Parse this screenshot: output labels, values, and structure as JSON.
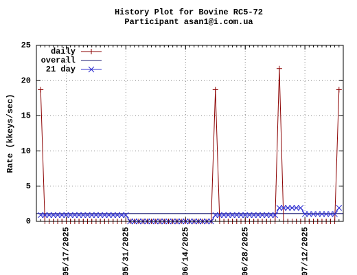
{
  "chart_data": {
    "type": "line",
    "title": "History Plot for Bovine RC5-72",
    "subtitle": "Participant asan1@i.com.ua",
    "y_label": "Rate (kkeys/sec)",
    "x": [
      "05/11/2025",
      "05/12/2025",
      "05/13/2025",
      "05/14/2025",
      "05/15/2025",
      "05/16/2025",
      "05/17/2025",
      "05/18/2025",
      "05/19/2025",
      "05/20/2025",
      "05/21/2025",
      "05/22/2025",
      "05/23/2025",
      "05/24/2025",
      "05/25/2025",
      "05/26/2025",
      "05/27/2025",
      "05/28/2025",
      "05/29/2025",
      "05/30/2025",
      "05/31/2025",
      "06/01/2025",
      "06/02/2025",
      "06/03/2025",
      "06/04/2025",
      "06/05/2025",
      "06/06/2025",
      "06/07/2025",
      "06/08/2025",
      "06/09/2025",
      "06/10/2025",
      "06/11/2025",
      "06/12/2025",
      "06/13/2025",
      "06/14/2025",
      "06/15/2025",
      "06/16/2025",
      "06/17/2025",
      "06/18/2025",
      "06/19/2025",
      "06/20/2025",
      "06/21/2025",
      "06/22/2025",
      "06/23/2025",
      "06/24/2025",
      "06/25/2025",
      "06/26/2025",
      "06/27/2025",
      "06/28/2025",
      "06/29/2025",
      "06/30/2025",
      "07/01/2025",
      "07/02/2025",
      "07/03/2025",
      "07/04/2025",
      "07/05/2025",
      "07/06/2025",
      "07/07/2025",
      "07/08/2025",
      "07/09/2025",
      "07/10/2025",
      "07/11/2025",
      "07/12/2025",
      "07/13/2025",
      "07/14/2025",
      "07/15/2025",
      "07/16/2025",
      "07/17/2025",
      "07/18/2025",
      "07/19/2025",
      "07/20/2025"
    ],
    "series": [
      {
        "name": "daily",
        "color": "#8b0000",
        "marker": "+",
        "values": [
          18.7,
          0,
          0,
          0,
          0,
          0,
          0,
          0,
          0,
          0,
          0,
          0,
          0,
          0,
          0,
          0,
          0,
          0,
          0,
          0,
          0,
          0,
          0,
          0,
          0,
          0,
          0,
          0,
          0,
          0,
          0,
          0,
          0,
          0,
          0,
          0,
          0,
          0,
          0,
          0,
          0,
          18.7,
          0,
          0,
          0,
          0,
          0,
          0,
          0,
          0,
          0,
          0,
          0,
          0,
          0,
          0,
          21.7,
          0,
          0,
          0,
          0,
          0,
          0,
          0,
          0,
          0,
          0,
          0,
          0,
          0,
          18.7
        ]
      },
      {
        "name": "21 day",
        "color": "#3030d0",
        "marker": "x",
        "values": [
          0.89,
          0.89,
          0.89,
          0.89,
          0.89,
          0.89,
          0.89,
          0.89,
          0.89,
          0.89,
          0.89,
          0.89,
          0.89,
          0.89,
          0.89,
          0.89,
          0.89,
          0.89,
          0.89,
          0.89,
          0.89,
          0,
          0,
          0,
          0,
          0,
          0,
          0,
          0,
          0,
          0,
          0,
          0,
          0,
          0,
          0,
          0,
          0,
          0,
          0,
          0,
          0.89,
          0.89,
          0.89,
          0.89,
          0.89,
          0.89,
          0.89,
          0.89,
          0.89,
          0.89,
          0.89,
          0.89,
          0.89,
          0.89,
          0.89,
          1.92,
          1.92,
          1.92,
          1.92,
          1.92,
          1.92,
          1.03,
          1.03,
          1.03,
          1.03,
          1.03,
          1.03,
          1.03,
          1.03,
          1.92
        ]
      }
    ],
    "reference_lines": [
      {
        "name": "overall",
        "color": "#191970",
        "value": 1.1
      }
    ],
    "xlim": [
      "05/10/2025",
      "07/21/2025"
    ],
    "xticks": [
      "05/17/2025",
      "05/31/2025",
      "06/14/2025",
      "06/28/2025",
      "07/12/2025"
    ],
    "ylim": [
      0,
      25
    ],
    "yticks": [
      0,
      5,
      10,
      15,
      20,
      25
    ],
    "grid": true,
    "legend": "top-left"
  }
}
